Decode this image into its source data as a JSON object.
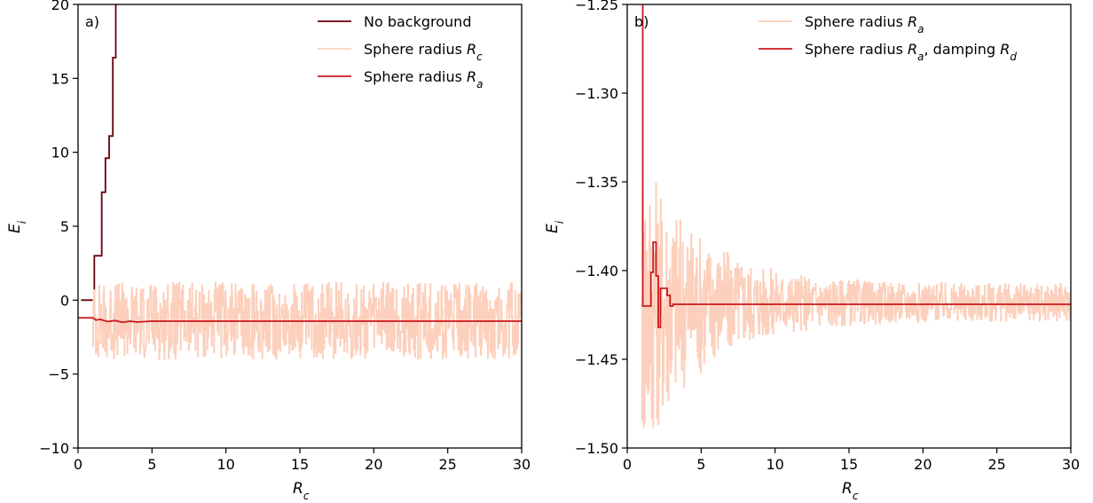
{
  "chart_data": [
    {
      "type": "line",
      "panel_label": "a)",
      "xlabel_main": "R",
      "xlabel_sub": "c",
      "ylabel_main": "E",
      "ylabel_sub": "i",
      "xlim": [
        0,
        30
      ],
      "ylim": [
        -10,
        20
      ],
      "xticks": [
        0,
        5,
        10,
        15,
        20,
        25,
        30
      ],
      "xtick_labels": [
        "0",
        "5",
        "10",
        "15",
        "20",
        "25",
        "30"
      ],
      "yticks": [
        -10,
        -5,
        0,
        5,
        10,
        15,
        20
      ],
      "ytick_labels": [
        "−10",
        "−5",
        "0",
        "5",
        "10",
        "15",
        "20"
      ],
      "grid": false,
      "legend_position": "top-right",
      "series": [
        {
          "name": "No background",
          "legend_main": "No background",
          "legend_sub": "",
          "legend_suffix": "",
          "color": "#67000d",
          "step": true,
          "x": [
            0.2,
            1.0,
            1.1,
            1.5,
            1.6,
            1.75,
            1.85,
            2.0,
            2.1,
            2.25,
            2.35,
            2.45,
            2.55
          ],
          "y": [
            0.0,
            0.0,
            3.0,
            3.0,
            7.3,
            7.3,
            9.6,
            9.6,
            11.1,
            11.1,
            16.4,
            16.4,
            20.5
          ]
        },
        {
          "name": "Sphere radius R_c",
          "legend_main": "Sphere radius ",
          "legend_sub": "c",
          "legend_suffix": "",
          "color": "#fcd0bc",
          "step": false,
          "noisy": true,
          "x_start": 1.0,
          "x_end": 30.0,
          "mean": -1.4,
          "spread": 2.6,
          "range": [
            -7.5,
            5.3
          ]
        },
        {
          "name": "Sphere radius R_a",
          "legend_main": "Sphere radius ",
          "legend_sub": "a",
          "legend_suffix": "",
          "color": "#cb181d",
          "step": false,
          "x": [
            0.0,
            1.0,
            1.2,
            1.5,
            2.0,
            2.5,
            3.0,
            3.5,
            4.0,
            5.0,
            7.0,
            10.0,
            15.0,
            20.0,
            25.0,
            30.0
          ],
          "y": [
            -1.2,
            -1.2,
            -1.35,
            -1.3,
            -1.45,
            -1.38,
            -1.5,
            -1.42,
            -1.48,
            -1.42,
            -1.42,
            -1.42,
            -1.42,
            -1.42,
            -1.42,
            -1.42
          ]
        }
      ]
    },
    {
      "type": "line",
      "panel_label": "b)",
      "xlabel_main": "R",
      "xlabel_sub": "c",
      "ylabel_main": "E",
      "ylabel_sub": "i",
      "xlim": [
        0,
        30
      ],
      "ylim": [
        -1.5,
        -1.25
      ],
      "xticks": [
        0,
        5,
        10,
        15,
        20,
        25,
        30
      ],
      "xtick_labels": [
        "0",
        "5",
        "10",
        "15",
        "20",
        "25",
        "30"
      ],
      "yticks": [
        -1.5,
        -1.45,
        -1.4,
        -1.35,
        -1.3,
        -1.25
      ],
      "ytick_labels": [
        "−1.50",
        "−1.45",
        "−1.40",
        "−1.35",
        "−1.30",
        "−1.25"
      ],
      "grid": false,
      "legend_position": "top-right",
      "series": [
        {
          "name": "Sphere radius R_a",
          "legend_main": "Sphere radius ",
          "legend_sub": "a",
          "legend_suffix": "",
          "color": "#fcd0bc",
          "step": false,
          "noisy": true,
          "x_start": 1.0,
          "x_end": 30.0,
          "mean": -1.418,
          "spread": 0.03,
          "range": [
            -1.488,
            -1.315
          ]
        },
        {
          "name": "Sphere radius R_a, damping R_d",
          "legend_main": "Sphere radius ",
          "legend_sub": "a",
          "legend_suffix": ", damping ",
          "legend_main2": "R",
          "legend_sub2": "d",
          "color": "#cb181d",
          "step": true,
          "x": [
            1.0,
            1.05,
            1.05,
            1.6,
            1.6,
            1.75,
            1.75,
            1.95,
            1.95,
            2.1,
            2.1,
            2.25,
            2.25,
            2.45,
            2.45,
            2.7,
            2.7,
            2.9,
            2.9,
            3.1,
            3.1,
            3.3,
            3.3,
            30.0
          ],
          "y": [
            -1.24,
            -1.24,
            -1.42,
            -1.42,
            -1.401,
            -1.401,
            -1.384,
            -1.384,
            -1.403,
            -1.403,
            -1.432,
            -1.432,
            -1.41,
            -1.41,
            -1.41,
            -1.41,
            -1.414,
            -1.414,
            -1.42,
            -1.42,
            -1.419,
            -1.419,
            -1.419,
            -1.419
          ]
        }
      ]
    }
  ]
}
